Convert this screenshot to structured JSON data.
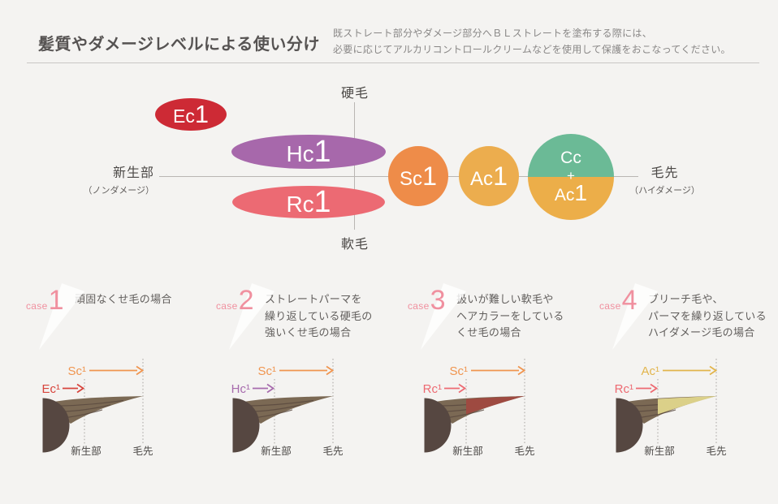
{
  "header": {
    "title": "髪質やダメージレベルによる使い分け",
    "note_lines": [
      "既ストレート部分やダメージ部分へＢＬストレートを塗布する際には、",
      "必要に応じてアルカリコントロールクリームなどを使用して保護をおこなってください。"
    ]
  },
  "diagram": {
    "axis_top": "硬毛",
    "axis_bottom": "軟毛",
    "axis_left_main": "新生部",
    "axis_left_sub": "（ノンダメージ）",
    "axis_right_main": "毛先",
    "axis_right_sub": "（ハイダメージ）",
    "bubbles": {
      "ec": {
        "prefix": "Ec",
        "suffix": "1",
        "color": "#cd2a35"
      },
      "hc": {
        "prefix": "Hc",
        "suffix": "1",
        "color": "#a768ab"
      },
      "rc": {
        "prefix": "Rc",
        "suffix": "1",
        "color": "#ec6a73"
      },
      "sc": {
        "prefix": "Sc",
        "suffix": "1",
        "color": "#ee8c49"
      },
      "ac": {
        "prefix": "Ac",
        "suffix": "1",
        "color": "#ecad4e"
      },
      "ccac": {
        "line1": "Cc",
        "plus": "+",
        "prefix": "Ac",
        "suffix": "1",
        "top_color": "#6bba96",
        "bottom_color": "#ecae49"
      }
    }
  },
  "cases": [
    {
      "case_word": "case",
      "number": "1",
      "desc": [
        "頑固なくせ毛の場合"
      ],
      "top_arrow": {
        "label": "Sc¹",
        "color": "#f0954f"
      },
      "bottom_arrow": {
        "label": "Ec¹",
        "color": "#d7443c"
      },
      "tip_color": "none",
      "label_root": "新生部",
      "label_tip": "毛先"
    },
    {
      "case_word": "case",
      "number": "2",
      "desc": [
        "ストレートパーマを",
        "繰り返している硬毛の",
        "強いくせ毛の場合"
      ],
      "top_arrow": {
        "label": "Sc¹",
        "color": "#f0954f"
      },
      "bottom_arrow": {
        "label": "Hc¹",
        "color": "#a76bad"
      },
      "tip_color": "none",
      "label_root": "新生部",
      "label_tip": "毛先"
    },
    {
      "case_word": "case",
      "number": "3",
      "desc": [
        "扱いが難しい軟毛や",
        "ヘアカラーをしている",
        "くせ毛の場合"
      ],
      "top_arrow": {
        "label": "Sc¹",
        "color": "#f0954f"
      },
      "bottom_arrow": {
        "label": "Rc¹",
        "color": "#ed6a72"
      },
      "tip_color": "#9e4a41",
      "label_root": "新生部",
      "label_tip": "毛先"
    },
    {
      "case_word": "case",
      "number": "4",
      "desc": [
        "ブリーチ毛や、",
        "パーマを繰り返している",
        "ハイダメージ毛の場合"
      ],
      "top_arrow": {
        "label": "Ac¹",
        "color": "#e2b54c"
      },
      "bottom_arrow": {
        "label": "Rc¹",
        "color": "#ed6a72"
      },
      "tip_color": "#dbd089",
      "label_root": "新生部",
      "label_tip": "毛先"
    }
  ]
}
